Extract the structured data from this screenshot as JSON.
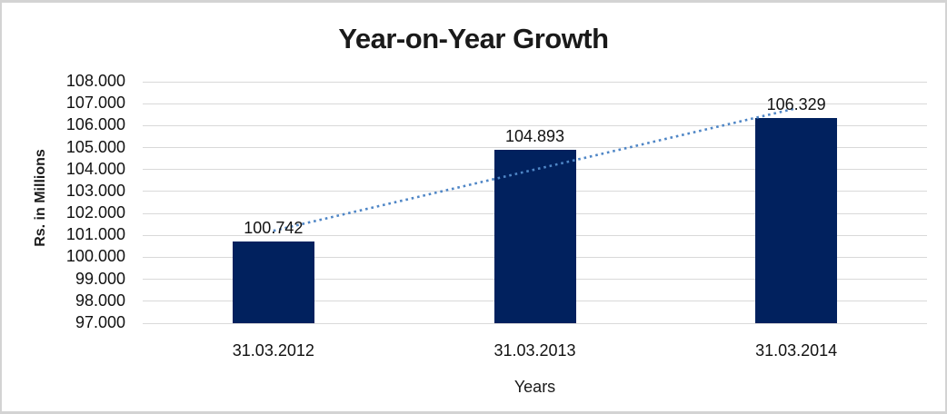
{
  "chart_data": {
    "type": "bar",
    "title": "Year-on-Year Growth",
    "xlabel": "Years",
    "ylabel": "Rs. in Millions",
    "categories": [
      "31.03.2012",
      "31.03.2013",
      "31.03.2014"
    ],
    "values": [
      100.742,
      104.893,
      106.329
    ],
    "data_labels": [
      "100.742",
      "104.893",
      "106.329"
    ],
    "ylim": [
      97,
      108
    ],
    "ytick_labels": [
      "108.000",
      "107.000",
      "106.000",
      "105.000",
      "104.000",
      "103.000",
      "102.000",
      "101.000",
      "100.000",
      "99.000",
      "98.000",
      "97.000"
    ],
    "grid": true,
    "legend": false,
    "bar_color": "#01215e",
    "gridline_color": "#d9d9d9",
    "text_color": "#1a1a1a",
    "frame_border_color": "#d3d3d3",
    "trendline": {
      "style": "dotted",
      "color": "#4f86c6",
      "start_value": 101.21,
      "end_value": 106.79
    }
  }
}
